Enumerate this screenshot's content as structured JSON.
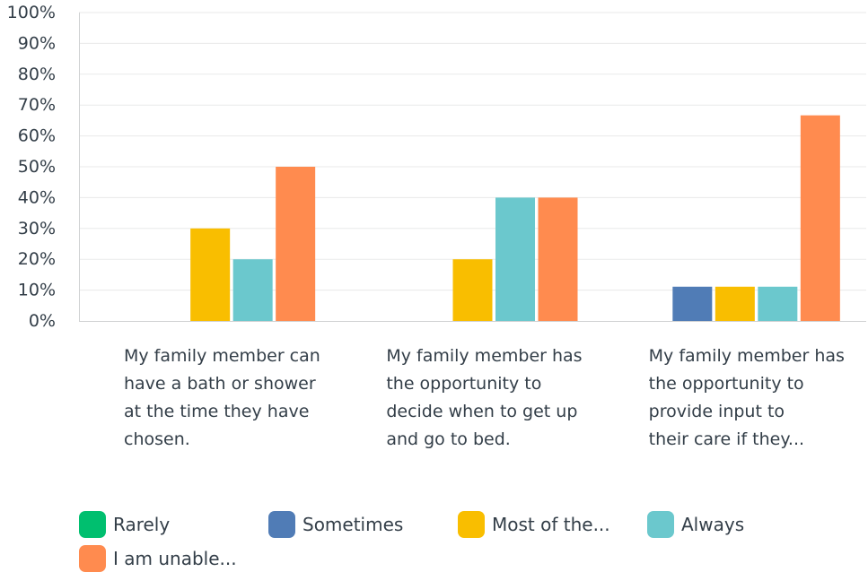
{
  "chart_data": {
    "type": "bar",
    "categories": [
      [
        "My family member can",
        "have a bath or shower",
        "at the time they have",
        "chosen."
      ],
      [
        "My family member has",
        "the opportunity to",
        "decide when to get up",
        "and go to bed."
      ],
      [
        "My family member has",
        "the opportunity to",
        "provide input to",
        "their care if they..."
      ]
    ],
    "series": [
      {
        "name": "Rarely",
        "color": "#00bf6f",
        "values": [
          0,
          0,
          0
        ]
      },
      {
        "name": "Sometimes",
        "color": "#507cb6",
        "values": [
          0,
          0,
          11.11
        ]
      },
      {
        "name": "Most of the...",
        "color": "#f9be00",
        "values": [
          30,
          20,
          11.11
        ]
      },
      {
        "name": "Always",
        "color": "#6bc8cd",
        "values": [
          20,
          40,
          11.11
        ]
      },
      {
        "name": "I am unable...",
        "color": "#ff8b4f",
        "values": [
          50,
          40,
          66.67
        ]
      }
    ],
    "y_ticks": [
      "0%",
      "10%",
      "20%",
      "30%",
      "40%",
      "50%",
      "60%",
      "70%",
      "80%",
      "90%",
      "100%"
    ],
    "ylim": [
      0,
      100
    ],
    "grid": true,
    "legend_position": "bottom"
  }
}
